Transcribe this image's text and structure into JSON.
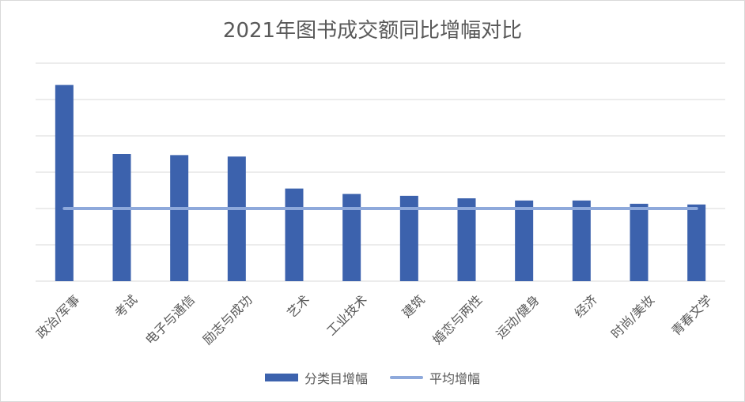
{
  "chart_data": {
    "type": "bar",
    "title": "2021年图书成交额同比增幅对比",
    "categories": [
      "政治/军事",
      "考试",
      "电子与通信",
      "励志与成功",
      "艺术",
      "工业技术",
      "建筑",
      "婚恋与两性",
      "运动/健身",
      "经济",
      "时尚/美妆",
      "青春文学"
    ],
    "series": [
      {
        "name": "分类目增幅",
        "type": "bar",
        "color": "#3c62ad",
        "values": [
          5.4,
          3.5,
          3.47,
          3.43,
          2.55,
          2.4,
          2.35,
          2.28,
          2.22,
          2.22,
          2.13,
          2.11
        ]
      },
      {
        "name": "平均增幅",
        "type": "line",
        "color": "#8ea9db",
        "values": [
          2.0,
          2.0,
          2.0,
          2.0,
          2.0,
          2.0,
          2.0,
          2.0,
          2.0,
          2.0,
          2.0,
          2.0
        ]
      }
    ],
    "ylim": [
      0,
      6
    ],
    "ygrid_step": 1,
    "y_tick_labels_shown": false,
    "grid": true,
    "legend_position": "bottom",
    "xlabel": "",
    "ylabel": ""
  }
}
